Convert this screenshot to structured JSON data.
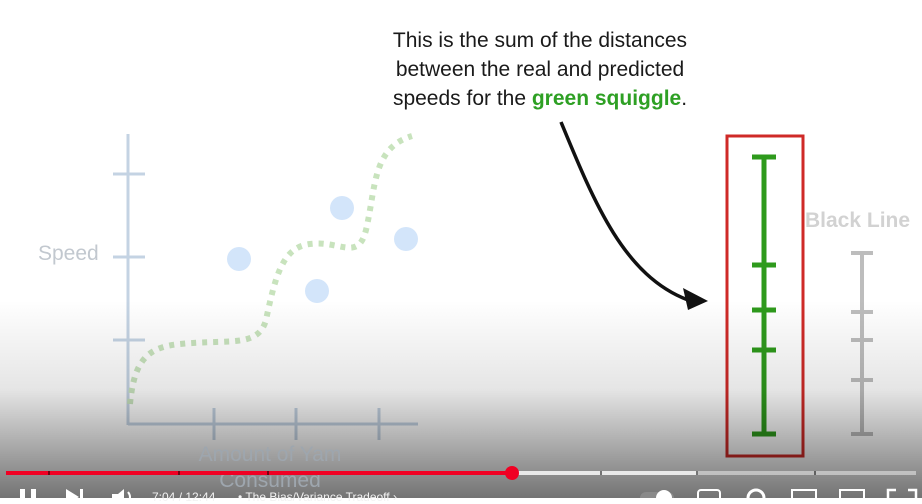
{
  "callout": {
    "line1": "This is the sum of the distances",
    "line2": "between the real and predicted",
    "line3_pre": "speeds for the ",
    "line3_highlight": "green squiggle",
    "line3_post": ".",
    "highlight_color": "#2ea024"
  },
  "plot": {
    "ylabel": "Speed",
    "xlabel_line1": "Amount of Yam",
    "xlabel_line2": "Consumed",
    "squiggle_color": "#c8e3bd",
    "point_color": "#d3e5fa",
    "axis_color": "#c4d3e3"
  },
  "bars": {
    "black_line_label": "Black Line",
    "green_bar_color": "#2e9a1c",
    "gray_bar_color": "#bdbdbd",
    "box_color": "#cf2a27"
  },
  "player": {
    "time_current": "7:04",
    "time_total": "12:44",
    "time_separator": " / ",
    "chapter_title": "The Bias/Variance Tradeoff",
    "progress_played": 0.556,
    "progress_buffered": 0.76,
    "accent_color": "#f00023",
    "icons": [
      "pause-icon",
      "next-icon",
      "volume-icon",
      "autoplay-toggle-icon",
      "subtitles-icon",
      "settings-icon",
      "miniplayer-icon",
      "theater-icon",
      "fullscreen-icon",
      "chevron-right-icon"
    ]
  }
}
